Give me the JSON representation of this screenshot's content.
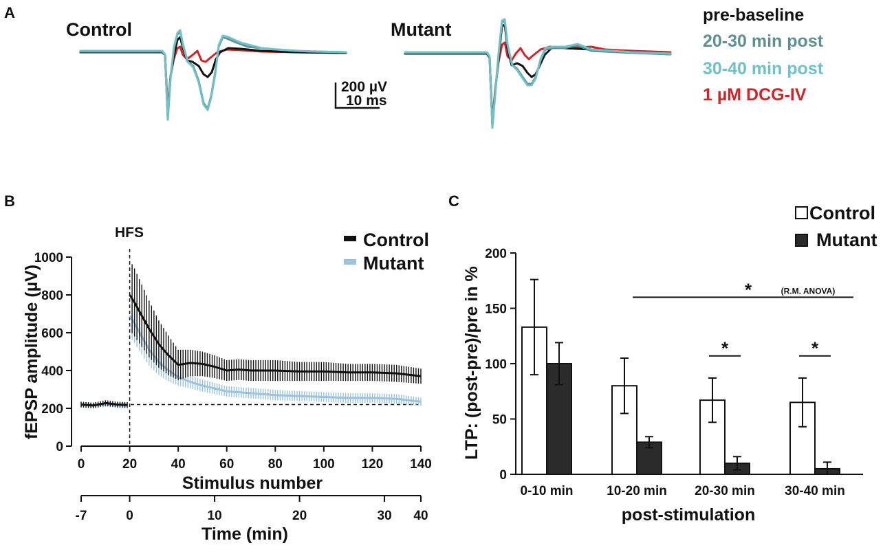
{
  "panel_labels": {
    "a": "A",
    "b": "B",
    "c": "C"
  },
  "colors": {
    "pre": "#111111",
    "post2030": "#5f8f8f",
    "post3040": "#6ec2c7",
    "dcg": "#d42327",
    "control_line": "#111111",
    "mutant_line": "#9bc3df",
    "bar_mutant": "#2b2b2b"
  },
  "panel_a": {
    "conditions": [
      "Control",
      "Mutant"
    ],
    "legend": [
      {
        "label": "pre-baseline",
        "color": "#111111"
      },
      {
        "label": "20-30 min post",
        "color": "#5f8f8f"
      },
      {
        "label": "30-40 min post",
        "color": "#6ec2c7"
      },
      {
        "label": "1 µM DCG-IV",
        "color": "#d42327"
      }
    ],
    "scale_bar": {
      "voltage": "200 µV",
      "time": "10 ms"
    }
  },
  "chart_data": [
    {
      "type": "line",
      "panel": "B",
      "annotation": "HFS",
      "xlabel": "Stimulus number",
      "ylabel": "fEPSP amplitude (µV)",
      "xlim": [
        0,
        140
      ],
      "ylim": [
        0,
        1000
      ],
      "x_ticks": [
        0,
        20,
        40,
        60,
        80,
        100,
        120,
        140
      ],
      "y_ticks": [
        0,
        200,
        400,
        600,
        800,
        1000
      ],
      "secondary_xlabel": "Time (min)",
      "secondary_x_ticks": [
        {
          "label": "-7",
          "stimulus": 0
        },
        {
          "label": "0",
          "stimulus": 20
        },
        {
          "label": "10",
          "stimulus": 55
        },
        {
          "label": "20",
          "stimulus": 90
        },
        {
          "label": "30",
          "stimulus": 125
        },
        {
          "label": "40",
          "stimulus": 140
        }
      ],
      "baseline_level": 220,
      "hfs_at": 20,
      "series": [
        {
          "name": "Control",
          "color": "#111111",
          "x": [
            0,
            5,
            10,
            15,
            19,
            20,
            22,
            25,
            28,
            32,
            36,
            40,
            45,
            50,
            55,
            60,
            65,
            70,
            80,
            90,
            100,
            110,
            120,
            130,
            140
          ],
          "y": [
            220,
            215,
            228,
            220,
            218,
            800,
            760,
            690,
            620,
            540,
            480,
            430,
            440,
            435,
            420,
            400,
            405,
            400,
            400,
            395,
            395,
            390,
            390,
            385,
            370
          ],
          "err": [
            15,
            15,
            15,
            15,
            15,
            185,
            180,
            165,
            150,
            125,
            105,
            80,
            70,
            65,
            60,
            55,
            55,
            55,
            55,
            50,
            50,
            45,
            45,
            45,
            40
          ]
        },
        {
          "name": "Mutant",
          "color": "#9bc3df",
          "x": [
            0,
            5,
            10,
            15,
            19,
            20,
            22,
            25,
            28,
            32,
            36,
            40,
            45,
            50,
            55,
            60,
            65,
            70,
            80,
            90,
            100,
            110,
            120,
            130,
            140
          ],
          "y": [
            220,
            215,
            222,
            218,
            215,
            690,
            650,
            580,
            510,
            445,
            400,
            365,
            340,
            320,
            305,
            290,
            285,
            280,
            270,
            265,
            260,
            255,
            255,
            250,
            235
          ],
          "err": [
            15,
            15,
            15,
            15,
            15,
            110,
            105,
            95,
            85,
            70,
            58,
            45,
            35,
            32,
            30,
            28,
            28,
            28,
            28,
            26,
            26,
            26,
            25,
            25,
            22
          ]
        }
      ]
    },
    {
      "type": "bar",
      "panel": "C",
      "categories": [
        "0-10 min",
        "10-20 min",
        "20-30 min",
        "30-40 min"
      ],
      "xlabel": "post-stimulation",
      "ylabel": "LTP: (post-pre)/pre in %",
      "ylim": [
        0,
        200
      ],
      "y_ticks": [
        0,
        50,
        100,
        150,
        200
      ],
      "series": [
        {
          "name": "Control",
          "values": [
            133,
            80,
            67,
            65
          ],
          "errors": [
            43,
            25,
            20,
            22
          ],
          "fill": "#ffffff",
          "stroke": "#111111"
        },
        {
          "name": "Mutant",
          "values": [
            100,
            29,
            10,
            5
          ],
          "errors": [
            19,
            5,
            6,
            6
          ],
          "fill": "#2b2b2b",
          "stroke": "#111111"
        }
      ],
      "significance": [
        {
          "from": "10-20 min",
          "to": "30-40 min",
          "label": "*",
          "note": "(R.M. ANOVA)",
          "level": 160
        },
        {
          "category": "20-30 min",
          "label": "*",
          "level": 107
        },
        {
          "category": "30-40 min",
          "label": "*",
          "level": 107
        }
      ]
    }
  ]
}
